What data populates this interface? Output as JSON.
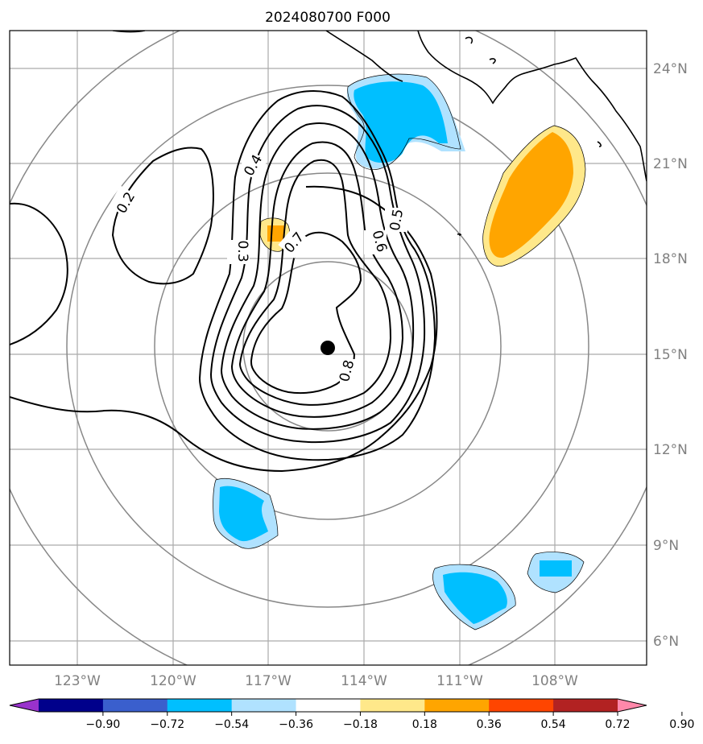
{
  "title": "2024080700 F000",
  "map": {
    "lon_range": [
      -125,
      -104.5
    ],
    "lat_range": [
      5.3,
      25.4
    ],
    "center_marker": {
      "lon": -115,
      "lat": 15.2
    },
    "range_rings": "concentric gray circles around center",
    "gridlines": true
  },
  "lon_ticks": [
    {
      "value": -123,
      "label": "123°W"
    },
    {
      "value": -120,
      "label": "120°W"
    },
    {
      "value": -117,
      "label": "117°W"
    },
    {
      "value": -114,
      "label": "114°W"
    },
    {
      "value": -111,
      "label": "111°W"
    },
    {
      "value": -108,
      "label": "108°W"
    }
  ],
  "lat_ticks": [
    {
      "value": 24,
      "label": "24°N"
    },
    {
      "value": 21,
      "label": "21°N"
    },
    {
      "value": 18,
      "label": "18°N"
    },
    {
      "value": 15,
      "label": "15°N"
    },
    {
      "value": 12,
      "label": "12°N"
    },
    {
      "value": 9,
      "label": "9°N"
    },
    {
      "value": 6,
      "label": "6°N"
    }
  ],
  "contour_labels": [
    "0.2",
    "0.3",
    "0.4",
    "0.5",
    "0.6",
    "0.7",
    "0.8"
  ],
  "colorbar": {
    "levels": [
      "−0.90",
      "−0.72",
      "−0.54",
      "−0.36",
      "−0.18",
      "0.18",
      "0.36",
      "0.54",
      "0.72",
      "0.90"
    ],
    "colors": [
      "#9932cc",
      "#00008b",
      "#3a5fcd",
      "#00bfff",
      "#b0e2ff",
      "#ffffff",
      "#ffe88a",
      "#ffa500",
      "#ff4500",
      "#b22222",
      "#ff88aa"
    ]
  }
}
